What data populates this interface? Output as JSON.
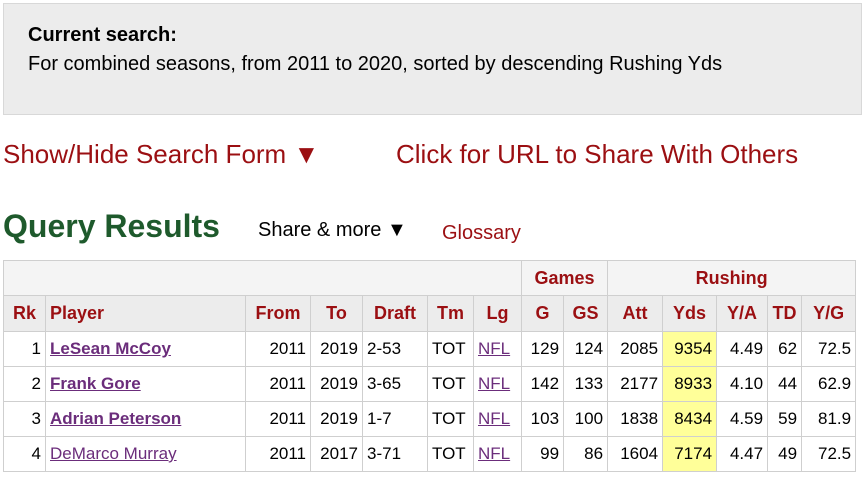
{
  "search": {
    "title": "Current search:",
    "description": "For combined seasons, from 2011 to 2020, sorted by descending Rushing Yds"
  },
  "links": [
    "Show/Hide Search Form ▼",
    "Click for URL to Share With Others"
  ],
  "results": {
    "title": "Query Results",
    "share": "Share & more ▼",
    "glossary": "Glossary"
  },
  "table": {
    "group_headers": [
      "Games",
      "Rushing"
    ],
    "headers": [
      "Rk",
      "Player",
      "From",
      "To",
      "Draft",
      "Tm",
      "Lg",
      "G",
      "GS",
      "Att",
      "Yds",
      "Y/A",
      "TD",
      "Y/G"
    ],
    "rows": [
      [
        "1",
        "LeSean McCoy",
        "2011",
        "2019",
        "2-53",
        "TOT",
        "NFL",
        "129",
        "124",
        "2085",
        "9354",
        "4.49",
        "62",
        "72.5"
      ],
      [
        "2",
        "Frank Gore",
        "2011",
        "2019",
        "3-65",
        "TOT",
        "NFL",
        "142",
        "133",
        "2177",
        "8933",
        "4.10",
        "44",
        "62.9"
      ],
      [
        "3",
        "Adrian Peterson",
        "2011",
        "2019",
        "1-7",
        "TOT",
        "NFL",
        "103",
        "100",
        "1838",
        "8434",
        "4.59",
        "59",
        "81.9"
      ],
      [
        "4",
        "DeMarco Murray",
        "2011",
        "2017",
        "3-71",
        "TOT",
        "NFL",
        "99",
        "86",
        "1604",
        "7174",
        "4.47",
        "49",
        "72.5"
      ]
    ]
  }
}
